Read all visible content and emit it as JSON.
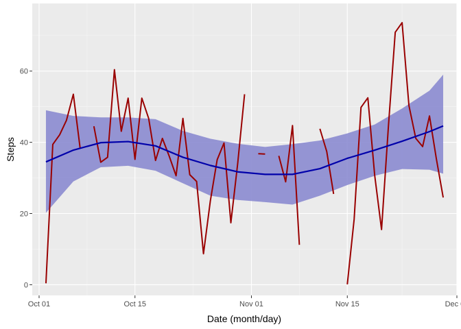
{
  "chart_data": {
    "type": "line",
    "xlabel": "Date (month/day)",
    "ylabel": "Steps",
    "xlim": [
      "2012-09-30",
      "2012-12-01"
    ],
    "ylim": [
      -3,
      79
    ],
    "x_ticks": [
      {
        "date": "2012-10-01",
        "label": "Oct 01"
      },
      {
        "date": "2012-10-15",
        "label": "Oct 15"
      },
      {
        "date": "2012-11-01",
        "label": "Nov 01"
      },
      {
        "date": "2012-11-15",
        "label": "Nov 15"
      },
      {
        "date": "2012-12-01",
        "label": "Dec 01"
      }
    ],
    "y_ticks": [
      0,
      20,
      40,
      60
    ],
    "grid": true,
    "series": [
      {
        "role": "daily-steps",
        "color": "#990000",
        "points": [
          [
            "2012-10-01",
            null
          ],
          [
            "2012-10-02",
            0.4
          ],
          [
            "2012-10-03",
            39.4
          ],
          [
            "2012-10-04",
            42.1
          ],
          [
            "2012-10-05",
            46.2
          ],
          [
            "2012-10-06",
            53.5
          ],
          [
            "2012-10-07",
            38.2
          ],
          [
            "2012-10-08",
            null
          ],
          [
            "2012-10-09",
            44.5
          ],
          [
            "2012-10-10",
            34.4
          ],
          [
            "2012-10-11",
            35.8
          ],
          [
            "2012-10-12",
            60.4
          ],
          [
            "2012-10-13",
            43.1
          ],
          [
            "2012-10-14",
            52.4
          ],
          [
            "2012-10-15",
            35.2
          ],
          [
            "2012-10-16",
            52.4
          ],
          [
            "2012-10-17",
            46.7
          ],
          [
            "2012-10-18",
            34.9
          ],
          [
            "2012-10-19",
            41.1
          ],
          [
            "2012-10-20",
            36.1
          ],
          [
            "2012-10-21",
            30.6
          ],
          [
            "2012-10-22",
            46.7
          ],
          [
            "2012-10-23",
            30.9
          ],
          [
            "2012-10-24",
            29.0
          ],
          [
            "2012-10-25",
            8.7
          ],
          [
            "2012-10-26",
            23.5
          ],
          [
            "2012-10-27",
            35.1
          ],
          [
            "2012-10-28",
            39.8
          ],
          [
            "2012-10-29",
            17.4
          ],
          [
            "2012-10-30",
            34.1
          ],
          [
            "2012-10-31",
            53.5
          ],
          [
            "2012-11-01",
            null
          ],
          [
            "2012-11-02",
            36.8
          ],
          [
            "2012-11-03",
            36.7
          ],
          [
            "2012-11-04",
            null
          ],
          [
            "2012-11-05",
            36.2
          ],
          [
            "2012-11-06",
            28.9
          ],
          [
            "2012-11-07",
            44.7
          ],
          [
            "2012-11-08",
            11.2
          ],
          [
            "2012-11-09",
            null
          ],
          [
            "2012-11-10",
            null
          ],
          [
            "2012-11-11",
            43.8
          ],
          [
            "2012-11-12",
            37.4
          ],
          [
            "2012-11-13",
            25.5
          ],
          [
            "2012-11-14",
            null
          ],
          [
            "2012-11-15",
            0.1
          ],
          [
            "2012-11-16",
            18.4
          ],
          [
            "2012-11-17",
            49.8
          ],
          [
            "2012-11-18",
            52.5
          ],
          [
            "2012-11-19",
            30.7
          ],
          [
            "2012-11-20",
            15.5
          ],
          [
            "2012-11-21",
            44.4
          ],
          [
            "2012-11-22",
            70.9
          ],
          [
            "2012-11-23",
            73.6
          ],
          [
            "2012-11-24",
            50.3
          ],
          [
            "2012-11-25",
            41.1
          ],
          [
            "2012-11-26",
            38.8
          ],
          [
            "2012-11-27",
            47.4
          ],
          [
            "2012-11-28",
            35.4
          ],
          [
            "2012-11-29",
            24.5
          ]
        ]
      },
      {
        "role": "smoothed-trend",
        "color": "#0000aa",
        "points": [
          [
            "2012-10-02",
            34.5
          ],
          [
            "2012-10-06",
            37.8
          ],
          [
            "2012-10-10",
            39.9
          ],
          [
            "2012-10-14",
            40.2
          ],
          [
            "2012-10-18",
            39.0
          ],
          [
            "2012-10-22",
            35.8
          ],
          [
            "2012-10-26",
            33.5
          ],
          [
            "2012-10-30",
            31.7
          ],
          [
            "2012-11-03",
            31.0
          ],
          [
            "2012-11-07",
            31.0
          ],
          [
            "2012-11-11",
            32.6
          ],
          [
            "2012-11-15",
            35.5
          ],
          [
            "2012-11-19",
            37.8
          ],
          [
            "2012-11-23",
            40.3
          ],
          [
            "2012-11-27",
            43.0
          ],
          [
            "2012-11-29",
            44.6
          ]
        ]
      }
    ],
    "confidence_band": {
      "color": "#8b8bd0",
      "points": [
        [
          "2012-10-02",
          20.2,
          49.0
        ],
        [
          "2012-10-06",
          29.0,
          47.4
        ],
        [
          "2012-10-10",
          33.0,
          47.0
        ],
        [
          "2012-10-14",
          33.4,
          47.0
        ],
        [
          "2012-10-18",
          32.0,
          46.5
        ],
        [
          "2012-10-22",
          28.5,
          43.2
        ],
        [
          "2012-10-26",
          25.0,
          41.0
        ],
        [
          "2012-10-30",
          23.8,
          39.6
        ],
        [
          "2012-11-03",
          23.2,
          38.7
        ],
        [
          "2012-11-07",
          22.5,
          39.5
        ],
        [
          "2012-11-11",
          25.0,
          40.5
        ],
        [
          "2012-11-15",
          28.0,
          42.5
        ],
        [
          "2012-11-19",
          30.6,
          45.0
        ],
        [
          "2012-11-23",
          32.5,
          49.5
        ],
        [
          "2012-11-27",
          32.3,
          54.5
        ],
        [
          "2012-11-29",
          31.2,
          59.0
        ]
      ]
    }
  }
}
